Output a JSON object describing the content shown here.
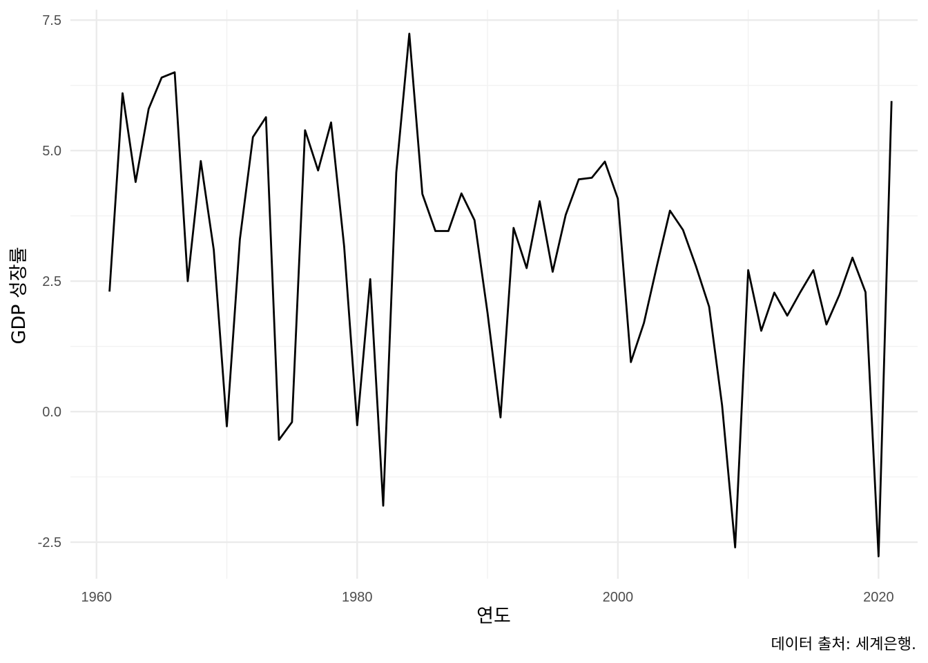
{
  "chart_data": {
    "type": "line",
    "title": "",
    "xlabel": "연도",
    "ylabel": "GDP 성장률",
    "caption": "데이터 출처: 세계은행.",
    "xlim": [
      1958,
      2023
    ],
    "ylim": [
      -3.2,
      7.7
    ],
    "x_ticks": [
      1960,
      1980,
      2000,
      2020
    ],
    "x_tick_labels": [
      "1960",
      "1980",
      "2000",
      "2020"
    ],
    "y_ticks": [
      -2.5,
      0.0,
      2.5,
      5.0,
      7.5
    ],
    "y_tick_labels": [
      "-2.5",
      "0.0",
      "2.5",
      "5.0",
      "7.5"
    ],
    "grid": true,
    "line_color": "#000000",
    "series": [
      {
        "x": [
          1961,
          1962,
          1963,
          1964,
          1965,
          1966,
          1967,
          1968,
          1969,
          1970,
          1971,
          1972,
          1973,
          1974,
          1975,
          1976,
          1977,
          1978,
          1979,
          1980,
          1981,
          1982,
          1983,
          1984,
          1985,
          1986,
          1987,
          1988,
          1989,
          1990,
          1991,
          1992,
          1993,
          1994,
          1995,
          1996,
          1997,
          1998,
          1999,
          2000,
          2001,
          2002,
          2003,
          2004,
          2005,
          2006,
          2007,
          2008,
          2009,
          2010,
          2011,
          2012,
          2013,
          2014,
          2015,
          2016,
          2017,
          2018,
          2019,
          2020,
          2021
        ],
        "values": [
          2.3,
          6.1,
          4.4,
          5.8,
          6.4,
          6.5,
          2.5,
          4.8,
          3.1,
          -0.28,
          3.3,
          5.26,
          5.64,
          -0.54,
          -0.2,
          5.39,
          4.62,
          5.54,
          3.17,
          -0.26,
          2.54,
          -1.8,
          4.58,
          7.24,
          4.17,
          3.46,
          3.46,
          4.18,
          3.67,
          1.89,
          -0.11,
          3.52,
          2.75,
          4.03,
          2.68,
          3.77,
          4.45,
          4.48,
          4.79,
          4.08,
          0.95,
          1.7,
          2.8,
          3.85,
          3.48,
          2.78,
          2.01,
          0.12,
          -2.6,
          2.71,
          1.55,
          2.28,
          1.84,
          2.29,
          2.71,
          1.67,
          2.24,
          2.95,
          2.29,
          -2.77,
          5.95
        ]
      }
    ]
  }
}
